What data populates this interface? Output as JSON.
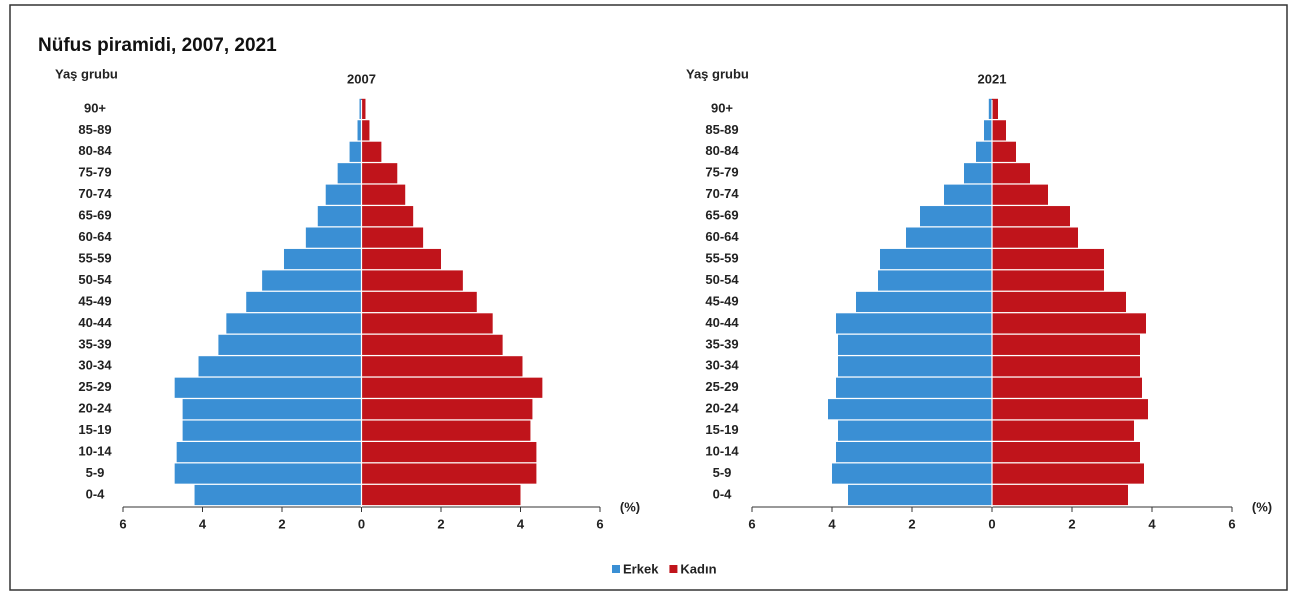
{
  "title": "Nüfus piramidi, 2007, 2021",
  "chart_data": [
    {
      "type": "pyramid",
      "title": "2007",
      "y_label": "Yaş grubu",
      "x_label": "(%)",
      "categories": [
        "0-4",
        "5-9",
        "10-14",
        "15-19",
        "20-24",
        "25-29",
        "30-34",
        "35-39",
        "40-44",
        "45-49",
        "50-54",
        "55-59",
        "60-64",
        "65-69",
        "70-74",
        "75-79",
        "80-84",
        "85-89",
        "90+"
      ],
      "series": [
        {
          "name": "Erkek",
          "color": "#3a8fd4",
          "values": [
            4.2,
            4.7,
            4.65,
            4.5,
            4.5,
            4.7,
            4.1,
            3.6,
            3.4,
            2.9,
            2.5,
            1.95,
            1.4,
            1.1,
            0.9,
            0.6,
            0.3,
            0.1,
            0.05
          ]
        },
        {
          "name": "Kadın",
          "color": "#c0141b",
          "values": [
            4.0,
            4.4,
            4.4,
            4.25,
            4.3,
            4.55,
            4.05,
            3.55,
            3.3,
            2.9,
            2.55,
            2.0,
            1.55,
            1.3,
            1.1,
            0.9,
            0.5,
            0.2,
            0.1
          ]
        }
      ],
      "xlim": [
        -6,
        6
      ],
      "xticks": [
        {
          "value": -6,
          "label": "6"
        },
        {
          "value": -4,
          "label": "4"
        },
        {
          "value": -2,
          "label": "2"
        },
        0,
        2,
        4,
        6
      ]
    },
    {
      "type": "pyramid",
      "title": "2021",
      "y_label": "Yaş grubu",
      "x_label": "(%)",
      "categories": [
        "0-4",
        "5-9",
        "10-14",
        "15-19",
        "20-24",
        "25-29",
        "30-34",
        "35-39",
        "40-44",
        "45-49",
        "50-54",
        "55-59",
        "60-64",
        "65-69",
        "70-74",
        "75-79",
        "80-84",
        "85-89",
        "90+"
      ],
      "series": [
        {
          "name": "Erkek",
          "color": "#3a8fd4",
          "values": [
            3.6,
            4.0,
            3.9,
            3.85,
            4.1,
            3.9,
            3.85,
            3.85,
            3.9,
            3.4,
            2.85,
            2.8,
            2.15,
            1.8,
            1.2,
            0.7,
            0.4,
            0.2,
            0.08
          ]
        },
        {
          "name": "Kadın",
          "color": "#c0141b",
          "values": [
            3.4,
            3.8,
            3.7,
            3.55,
            3.9,
            3.75,
            3.7,
            3.7,
            3.85,
            3.35,
            2.8,
            2.8,
            2.15,
            1.95,
            1.4,
            0.95,
            0.6,
            0.35,
            0.15
          ]
        }
      ],
      "xlim": [
        -6,
        6
      ],
      "xticks": [
        {
          "value": -6,
          "label": "6"
        },
        {
          "value": -4,
          "label": "4"
        },
        {
          "value": -2,
          "label": "2"
        },
        0,
        2,
        4,
        6
      ]
    }
  ]
}
